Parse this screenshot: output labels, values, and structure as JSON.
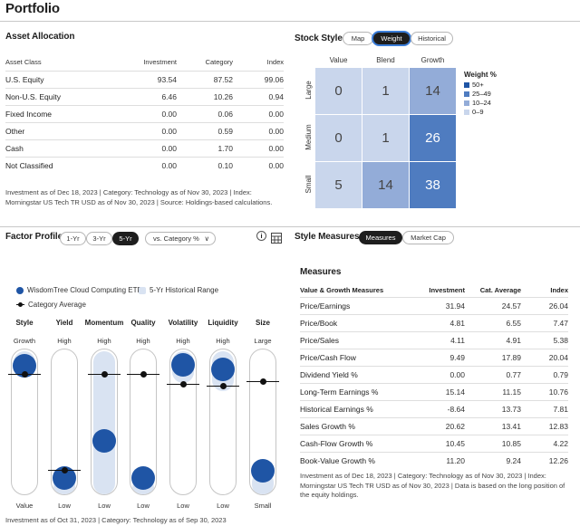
{
  "page": {
    "title": "Portfolio"
  },
  "asset_allocation": {
    "title": "Asset Allocation",
    "columns": [
      "Asset Class",
      "Investment",
      "Category",
      "Index"
    ],
    "rows": [
      [
        "U.S. Equity",
        "93.54",
        "87.52",
        "99.06"
      ],
      [
        "Non-U.S. Equity",
        "6.46",
        "10.26",
        "0.94"
      ],
      [
        "Fixed Income",
        "0.00",
        "0.06",
        "0.00"
      ],
      [
        "Other",
        "0.00",
        "0.59",
        "0.00"
      ],
      [
        "Cash",
        "0.00",
        "1.70",
        "0.00"
      ],
      [
        "Not Classified",
        "0.00",
        "0.10",
        "0.00"
      ]
    ],
    "note": "Investment as of Dec 18, 2023 | Category: Technology as of Nov 30, 2023 | Index: Morningstar US Tech TR USD as of Nov 30, 2023 | Source: Holdings-based calculations."
  },
  "stock_style": {
    "title": "Stock Style",
    "tabs": [
      "Map",
      "Weight",
      "Historical"
    ],
    "active_tab": "Weight",
    "col_headers": [
      "Value",
      "Blend",
      "Growth"
    ],
    "row_headers": [
      "Large",
      "Medium",
      "Small"
    ],
    "grid": [
      [
        "0",
        "1",
        "14"
      ],
      [
        "0",
        "1",
        "26"
      ],
      [
        "5",
        "14",
        "38"
      ]
    ],
    "legend_title": "Weight %",
    "legend": [
      {
        "label": "50+",
        "color": "#1f55a5"
      },
      {
        "label": "25–49",
        "color": "#4f7cc0"
      },
      {
        "label": "10–24",
        "color": "#93acd8"
      },
      {
        "label": "0–9",
        "color": "#c9d6ec"
      }
    ]
  },
  "factor_profile": {
    "title": "Factor Profile",
    "periods": [
      "1-Yr",
      "3-Yr",
      "5-Yr"
    ],
    "active_period": "5-Yr",
    "compare_select": "vs. Category %",
    "legend": {
      "fund": "WisdomTree Cloud Computing ETF",
      "range": "5-Yr Historical Range",
      "category": "Category Average"
    },
    "factors": [
      {
        "name": "Style",
        "top": "Growth",
        "bottom": "Value",
        "fund": 0.97,
        "category": 0.9,
        "range": [
          0.82,
          1.0
        ]
      },
      {
        "name": "Yield",
        "top": "High",
        "bottom": "Low",
        "fund": 0.03,
        "category": 0.1,
        "range": [
          0.0,
          0.14
        ]
      },
      {
        "name": "Momentum",
        "top": "High",
        "bottom": "Low",
        "fund": 0.34,
        "category": 0.9,
        "range": [
          0.0,
          1.0
        ]
      },
      {
        "name": "Quality",
        "top": "High",
        "bottom": "Low",
        "fund": 0.03,
        "category": 0.9,
        "range": [
          0.0,
          0.12
        ]
      },
      {
        "name": "Volatility",
        "top": "High",
        "bottom": "Low",
        "fund": 0.98,
        "category": 0.82,
        "range": [
          0.78,
          1.0
        ]
      },
      {
        "name": "Liquidity",
        "top": "High",
        "bottom": "Low",
        "fund": 0.94,
        "category": 0.8,
        "range": [
          0.72,
          1.0
        ]
      },
      {
        "name": "Size",
        "top": "Large",
        "bottom": "Small",
        "fund": 0.09,
        "category": 0.84,
        "range": [
          0.0,
          0.16
        ]
      }
    ],
    "note": "Investment as of Oct 31, 2023 | Category: Technology as of Sep 30, 2023"
  },
  "style_measures": {
    "title": "Style Measures",
    "tabs": [
      "Measures",
      "Market Cap"
    ],
    "active_tab": "Measures",
    "table_title": "Measures",
    "columns": [
      "Value & Growth Measures",
      "Investment",
      "Cat. Average",
      "Index"
    ],
    "rows": [
      [
        "Price/Earnings",
        "31.94",
        "24.57",
        "26.04"
      ],
      [
        "Price/Book",
        "4.81",
        "6.55",
        "7.47"
      ],
      [
        "Price/Sales",
        "4.11",
        "4.91",
        "5.38"
      ],
      [
        "Price/Cash Flow",
        "9.49",
        "17.89",
        "20.04"
      ],
      [
        "Dividend Yield %",
        "0.00",
        "0.77",
        "0.79"
      ],
      [
        "Long-Term Earnings %",
        "15.14",
        "11.15",
        "10.76"
      ],
      [
        "Historical Earnings %",
        "-8.64",
        "13.73",
        "7.81"
      ],
      [
        "Sales Growth %",
        "20.62",
        "13.41",
        "12.83"
      ],
      [
        "Cash-Flow Growth %",
        "10.45",
        "10.85",
        "4.22"
      ],
      [
        "Book-Value Growth %",
        "11.20",
        "9.24",
        "12.26"
      ]
    ],
    "note": "Investment as of Dec 18, 2023 | Category: Technology as of Nov 30, 2023 | Index: Morningstar US Tech TR USD as of Nov 30, 2023 | Data is based on the long position of the equity holdings."
  }
}
